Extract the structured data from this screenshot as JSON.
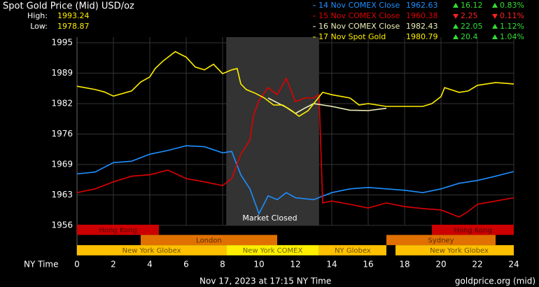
{
  "chart_data": {
    "type": "line",
    "title": "Spot Gold Price (Mid) USD/oz",
    "stats": [
      {
        "label": "High:",
        "value": 1993.24
      },
      {
        "label": "Low:",
        "value": 1978.87
      }
    ],
    "series": [
      {
        "name": "14 Nov COMEX Close",
        "color": "#1e8fff",
        "close": 1962.63,
        "change": 16.12,
        "direction": "up",
        "change_pct": {
          "value": 0.83,
          "label": "0.83%"
        },
        "x": [
          0,
          1,
          2,
          3,
          4,
          5,
          6,
          7,
          8,
          8.5,
          9,
          9.5,
          10,
          10.5,
          11,
          11.5,
          12,
          13,
          14,
          15,
          16,
          17,
          18,
          19,
          20,
          21,
          22,
          23,
          24
        ],
        "values": [
          1967,
          1967.4,
          1969.4,
          1969.7,
          1971.2,
          1972,
          1973,
          1972.8,
          1971.5,
          1971.8,
          1966.8,
          1963.8,
          1958.5,
          1962.3,
          1961.5,
          1963,
          1961.9,
          1961.5,
          1963,
          1963.8,
          1964.1,
          1963.8,
          1963.5,
          1963,
          1963.8,
          1965,
          1965.6,
          1966.5,
          1967.5
        ]
      },
      {
        "name": "15 Nov COMEX Close",
        "color": "#e00000",
        "close": 1960.38,
        "change": 2.25,
        "direction": "down",
        "change_pct": {
          "value": 0.11,
          "label": "0.11%"
        },
        "x": [
          0,
          1,
          2,
          3,
          4,
          5,
          6,
          7,
          8,
          8.5,
          9,
          9.5,
          9.7,
          10,
          10.5,
          11,
          11.5,
          12,
          12.5,
          13,
          13.3,
          13.5,
          14,
          15,
          16,
          17,
          18,
          19,
          20,
          21,
          21.5,
          22,
          23,
          24
        ],
        "values": [
          1963,
          1963.8,
          1965.3,
          1966.5,
          1966.8,
          1967.8,
          1966,
          1965.3,
          1964.5,
          1966,
          1971.2,
          1974.2,
          1979.5,
          1982.7,
          1985.4,
          1983.9,
          1987.4,
          1982.4,
          1983.2,
          1983.2,
          1983.9,
          1960.8,
          1961.2,
          1960.5,
          1959.7,
          1960.8,
          1960,
          1959.6,
          1959.3,
          1957.8,
          1959,
          1960.5,
          1961.2,
          1961.9
        ]
      },
      {
        "name": "16 Nov COMEX Close",
        "color": "#f0f0b8",
        "close": 1982.43,
        "change": 22.05,
        "direction": "up",
        "change_pct": {
          "value": 1.12,
          "label": "1.12%"
        },
        "x": [
          10.5,
          11,
          11.5,
          12,
          12.5,
          13,
          14,
          15,
          16,
          17
        ],
        "values": [
          1983.2,
          1982.2,
          1981.2,
          1979.9,
          1981,
          1982,
          1981.4,
          1980.6,
          1980.5,
          1981
        ]
      },
      {
        "name": "17 Nov Spot Gold",
        "color": "#ffee00",
        "close": 1980.79,
        "change": 20.4,
        "direction": "up",
        "change_pct": {
          "value": 1.04,
          "label": "1.04%"
        },
        "x": [
          0,
          1,
          1.5,
          2,
          3,
          3.5,
          4,
          4.3,
          4.7,
          5.2,
          5.4,
          6,
          6.5,
          7,
          7.5,
          8,
          8.5,
          8.8,
          9,
          9.3,
          9.8,
          10.3,
          10.8,
          11.3,
          11.8,
          12.2,
          12.7,
          13.5,
          14,
          15,
          15.5,
          16,
          17,
          18,
          19,
          19.5,
          20,
          20.2,
          21,
          21.5,
          22,
          23,
          24
        ],
        "values": [
          1985.7,
          1985,
          1984.5,
          1983.6,
          1984.7,
          1986.6,
          1987.7,
          1989.5,
          1991,
          1992.5,
          1993.1,
          1991.9,
          1989.8,
          1989.2,
          1990.4,
          1988.4,
          1989.2,
          1989.5,
          1986.2,
          1985,
          1984.2,
          1983.2,
          1981.7,
          1981.7,
          1980.5,
          1979.3,
          1980.5,
          1984.4,
          1983.9,
          1983.2,
          1981.7,
          1982,
          1981.4,
          1981.4,
          1981.4,
          1982,
          1983.5,
          1985.4,
          1984.4,
          1984.7,
          1985.9,
          1986.5,
          1986.2
        ]
      }
    ],
    "ylim": [
      1956,
      1995
    ],
    "yticks": [
      {
        "value": 1995,
        "label": "1995"
      },
      {
        "value": 1988.5,
        "label": "1989"
      },
      {
        "value": 1982,
        "label": "1982"
      },
      {
        "value": 1975.5,
        "label": "1976"
      },
      {
        "value": 1969,
        "label": "1969"
      },
      {
        "value": 1962.5,
        "label": "1963"
      },
      {
        "value": 1956,
        "label": "1956"
      }
    ],
    "xlim": [
      0,
      24
    ],
    "xticks": [
      0,
      2,
      4,
      6,
      8,
      10,
      12,
      14,
      16,
      18,
      20,
      22,
      24
    ],
    "xlabel": "NY Time",
    "grid": true,
    "closed": {
      "start": 8.2,
      "end": 13.3,
      "label": "Market Closed"
    },
    "sessions": [
      {
        "label": "Hong Kong",
        "start": 0,
        "end": 4.5,
        "row": 0,
        "color": "#cc0000"
      },
      {
        "label": "Hong Kong",
        "start": 19.5,
        "end": 24,
        "row": 0,
        "color": "#cc0000"
      },
      {
        "label": "London",
        "start": 3.5,
        "end": 11,
        "row": 1,
        "color": "#e07000"
      },
      {
        "label": "Sydney",
        "start": 17,
        "end": 23,
        "row": 1,
        "color": "#e07000"
      },
      {
        "label": "New York Globex",
        "start": 0,
        "end": 8.2,
        "row": 2,
        "color": "#ffc000"
      },
      {
        "label": "New York COMEX",
        "start": 8.2,
        "end": 13.3,
        "row": 2,
        "color": "#ffee00"
      },
      {
        "label": "NY Globex",
        "start": 13.3,
        "end": 17,
        "row": 2,
        "color": "#ffc000"
      },
      {
        "label": null,
        "start": 17.5,
        "end": 18,
        "row": 2,
        "color": "#ffc000"
      },
      {
        "label": "New York Globex",
        "start": 18,
        "end": 24,
        "row": 2,
        "color": "#ffc000"
      }
    ],
    "footer": "Nov 17, 2023 at 17:15 NY Time",
    "source": "goldprice.org (mid)"
  }
}
